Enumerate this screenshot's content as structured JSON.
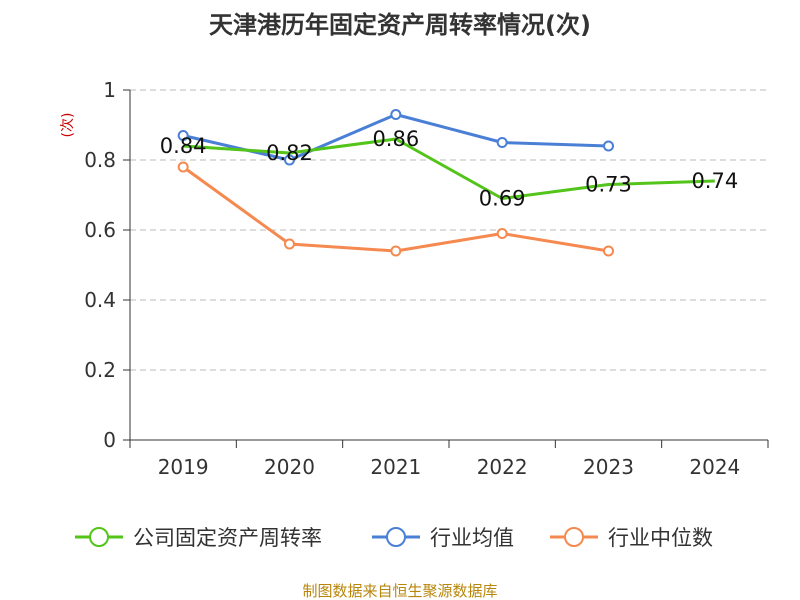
{
  "chart_data": {
    "type": "line",
    "title": "天津港历年固定资产周转率情况(次)",
    "ylabel": "(次)",
    "xlabel": "",
    "categories": [
      "2019",
      "2020",
      "2021",
      "2022",
      "2023",
      "2024"
    ],
    "ylim": [
      0,
      1
    ],
    "yticks": [
      0,
      0.2,
      0.4,
      0.6,
      0.8,
      1
    ],
    "ytick_labels": [
      "0",
      "0.2",
      "0.4",
      "0.6",
      "0.8",
      "1"
    ],
    "grid": true,
    "legend_position": "bottom",
    "series": [
      {
        "name": "公司固定资产周转率",
        "color": "#52c41a",
        "values": [
          0.84,
          0.82,
          0.86,
          0.69,
          0.73,
          0.74
        ],
        "labels": [
          "0.84",
          "0.82",
          "0.86",
          "0.69",
          "0.73",
          "0.74"
        ],
        "show_markers": false
      },
      {
        "name": "行业均值",
        "color": "#4a7fd6",
        "values": [
          0.87,
          0.8,
          0.93,
          0.85,
          0.84,
          null
        ],
        "show_markers": true
      },
      {
        "name": "行业中位数",
        "color": "#f5894f",
        "values": [
          0.78,
          0.56,
          0.54,
          0.59,
          0.54,
          null
        ],
        "show_markers": true
      }
    ],
    "source": "制图数据来自恒生聚源数据库"
  }
}
